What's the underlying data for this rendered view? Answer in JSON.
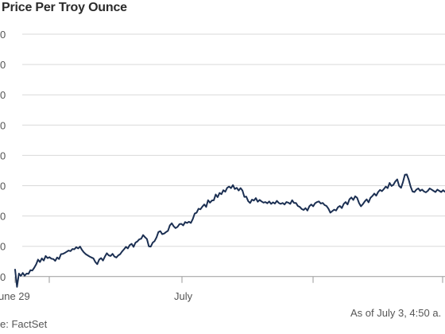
{
  "title": "Price Per Troy Ounce",
  "note": "As of July 3, 4:50 a.",
  "source": "e: FactSet",
  "colors": {
    "line": "#1b2f52",
    "grid": "#d9d9d9",
    "axis": "#9a9a9a",
    "text": "#555555"
  },
  "chart_data": {
    "type": "line",
    "title": "Price Per Troy Ounce",
    "xlabel": "",
    "ylabel": "",
    "y_tick_labels": [
      "0",
      "0",
      "0",
      "0",
      "0",
      "0",
      "0",
      "0",
      "0"
    ],
    "x_tick_labels": [
      "une 29",
      "July"
    ],
    "grid": true,
    "series": [
      {
        "values": [
          0.23,
          -0.34,
          0.1,
          0.02,
          0.12,
          0.03,
          0.1,
          0.09,
          0.21,
          0.2,
          0.29,
          0.4,
          0.56,
          0.48,
          0.6,
          0.53,
          0.68,
          0.61,
          0.64,
          0.59,
          0.58,
          0.52,
          0.63,
          0.58,
          0.74,
          0.75,
          0.78,
          0.82,
          0.86,
          0.84,
          0.91,
          0.9,
          0.97,
          0.93,
          0.99,
          0.88,
          0.8,
          0.74,
          0.7,
          0.66,
          0.63,
          0.6,
          0.48,
          0.41,
          0.56,
          0.61,
          0.53,
          0.66,
          0.77,
          0.7,
          0.68,
          0.75,
          0.66,
          0.63,
          0.7,
          0.74,
          0.83,
          0.9,
          0.98,
          0.93,
          1.04,
          1.08,
          0.98,
          1.12,
          1.16,
          1.23,
          1.25,
          1.37,
          1.3,
          1.24,
          1.0,
          0.99,
          1.12,
          1.17,
          1.29,
          1.47,
          1.5,
          1.4,
          1.42,
          1.47,
          1.51,
          1.69,
          1.76,
          1.66,
          1.6,
          1.64,
          1.73,
          1.74,
          1.69,
          1.8,
          1.77,
          1.81,
          1.77,
          1.9,
          2.08,
          2.11,
          2.24,
          2.22,
          2.31,
          2.38,
          2.3,
          2.52,
          2.44,
          2.51,
          2.52,
          2.71,
          2.62,
          2.76,
          2.72,
          2.85,
          2.8,
          2.93,
          2.97,
          2.92,
          3.02,
          2.89,
          2.93,
          2.84,
          2.92,
          2.84,
          2.63,
          2.64,
          2.49,
          2.43,
          2.54,
          2.51,
          2.59,
          2.47,
          2.53,
          2.48,
          2.44,
          2.46,
          2.42,
          2.48,
          2.4,
          2.45,
          2.41,
          2.5,
          2.43,
          2.4,
          2.43,
          2.38,
          2.46,
          2.44,
          2.4,
          2.52,
          2.43,
          2.43,
          2.33,
          2.3,
          2.23,
          2.2,
          2.26,
          2.18,
          2.32,
          2.38,
          2.32,
          2.42,
          2.46,
          2.48,
          2.41,
          2.43,
          2.36,
          2.33,
          2.24,
          2.11,
          2.16,
          2.21,
          2.18,
          2.29,
          2.33,
          2.26,
          2.4,
          2.46,
          2.38,
          2.55,
          2.61,
          2.53,
          2.65,
          2.6,
          2.43,
          2.32,
          2.39,
          2.48,
          2.55,
          2.45,
          2.6,
          2.66,
          2.74,
          2.67,
          2.79,
          2.86,
          2.82,
          2.89,
          2.97,
          2.92,
          3.09,
          2.99,
          3.03,
          3.14,
          3.21,
          2.99,
          2.93,
          3.12,
          3.36,
          3.37,
          3.2,
          2.97,
          2.81,
          2.79,
          2.87,
          2.91,
          2.83,
          2.87,
          2.81,
          2.78,
          2.83,
          2.91,
          2.87,
          2.83,
          2.79,
          2.87,
          2.83,
          2.79,
          2.85,
          2.8
        ]
      }
    ]
  }
}
